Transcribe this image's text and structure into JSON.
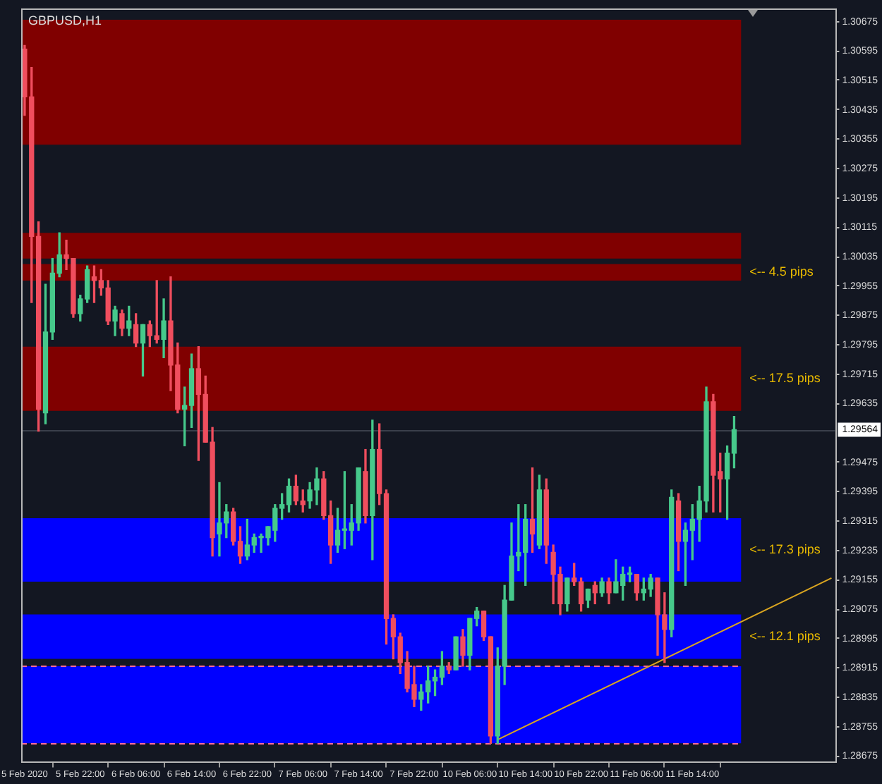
{
  "chart_data": {
    "type": "candlestick",
    "title": "GBPUSD,H1",
    "categories": [
      "5 Feb 2020",
      null,
      null,
      null,
      null,
      null,
      null,
      null,
      "5 Feb 22:00",
      null,
      null,
      null,
      null,
      null,
      null,
      null,
      "6 Feb 06:00",
      null,
      null,
      null,
      null,
      null,
      null,
      null,
      "6 Feb 14:00",
      null,
      null,
      null,
      null,
      null,
      null,
      null,
      "6 Feb 22:00",
      null,
      null,
      null,
      null,
      null,
      null,
      null,
      "7 Feb 06:00",
      null,
      null,
      null,
      null,
      null,
      null,
      null,
      "7 Feb 14:00",
      null,
      null,
      null,
      null,
      null,
      null,
      null,
      "7 Feb 22:00",
      null,
      null,
      null,
      null,
      null,
      null,
      null,
      "10 Feb 06:00",
      null,
      null,
      null,
      null,
      null,
      null,
      null,
      "10 Feb 14:00",
      null,
      null,
      null,
      null,
      null,
      null,
      null,
      "10 Feb 22:00",
      null,
      null,
      null,
      null,
      null,
      null,
      null,
      "11 Feb 06:00",
      null,
      null,
      null,
      null,
      null,
      null,
      null,
      "11 Feb 14:00",
      null,
      null,
      null,
      null,
      null,
      null,
      null,
      null,
      null,
      null,
      null,
      null,
      null,
      null,
      null,
      null,
      null,
      null,
      null,
      null
    ],
    "ohlc": [
      [
        1.306,
        1.3061,
        1.3042,
        1.3047
      ],
      [
        1.3047,
        1.3055,
        1.2991,
        1.3009
      ],
      [
        1.3009,
        1.3013,
        1.2956,
        1.2962
      ],
      [
        1.2961,
        1.2996,
        1.2958,
        1.2983
      ],
      [
        1.2983,
        1.3003,
        1.2981,
        1.2999
      ],
      [
        1.2999,
        1.301,
        1.2998,
        1.3004
      ],
      [
        1.3004,
        1.3008,
        1.3,
        1.3003
      ],
      [
        1.3003,
        1.3003,
        1.2987,
        1.2988
      ],
      [
        1.2988,
        1.2993,
        1.2986,
        1.2992
      ],
      [
        1.2992,
        1.3001,
        1.2991,
        1.3
      ],
      [
        1.2998,
        1.3001,
        1.2991,
        1.2997
      ],
      [
        1.2997,
        1.3,
        1.2993,
        1.2995
      ],
      [
        1.2995,
        1.2997,
        1.2985,
        1.2986
      ],
      [
        1.2986,
        1.299,
        1.2982,
        1.2989
      ],
      [
        1.2988,
        1.2989,
        1.2982,
        1.2984
      ],
      [
        1.2984,
        1.299,
        1.2982,
        1.2986
      ],
      [
        1.2985,
        1.2988,
        1.2979,
        1.298
      ],
      [
        1.298,
        1.2985,
        1.2971,
        1.2985
      ],
      [
        1.2985,
        1.2986,
        1.2979,
        1.2982
      ],
      [
        1.2982,
        1.2997,
        1.298,
        1.2981
      ],
      [
        1.2981,
        1.2992,
        1.2976,
        1.2986
      ],
      [
        1.2986,
        1.2998,
        1.2967,
        1.2974
      ],
      [
        1.2974,
        1.298,
        1.2961,
        1.2962
      ],
      [
        1.2962,
        1.2968,
        1.2952,
        1.2963
      ],
      [
        1.2963,
        1.2977,
        1.2957,
        1.2973
      ],
      [
        1.2973,
        1.2979,
        1.2948,
        1.2966
      ],
      [
        1.2966,
        1.2971,
        1.2953,
        1.2953
      ],
      [
        1.2953,
        1.2957,
        1.2922,
        1.2927
      ],
      [
        1.2928,
        1.2942,
        1.2922,
        1.2931
      ],
      [
        1.2931,
        1.2936,
        1.2927,
        1.2934
      ],
      [
        1.2934,
        1.2935,
        1.2925,
        1.2926
      ],
      [
        1.2926,
        1.293,
        1.292,
        1.2922
      ],
      [
        1.2922,
        1.2932,
        1.2921,
        1.2925
      ],
      [
        1.2925,
        1.2928,
        1.2923,
        1.2927
      ],
      [
        1.2927,
        1.2928,
        1.2923,
        1.2927
      ],
      [
        1.2927,
        1.293,
        1.2925,
        1.293
      ],
      [
        1.2929,
        1.2936,
        1.2926,
        1.2935
      ],
      [
        1.2935,
        1.2939,
        1.2932,
        1.2936
      ],
      [
        1.2936,
        1.2943,
        1.2934,
        1.2941
      ],
      [
        1.2941,
        1.2944,
        1.2936,
        1.2937
      ],
      [
        1.2937,
        1.294,
        1.2934,
        1.2936
      ],
      [
        1.2937,
        1.2942,
        1.2935,
        1.294
      ],
      [
        1.294,
        1.2946,
        1.2936,
        1.2943
      ],
      [
        1.2943,
        1.2945,
        1.2932,
        1.2933
      ],
      [
        1.2933,
        1.2937,
        1.292,
        1.2925
      ],
      [
        1.2925,
        1.2935,
        1.2923,
        1.2929
      ],
      [
        1.2929,
        1.2945,
        1.2924,
        1.2929
      ],
      [
        1.2929,
        1.2936,
        1.2925,
        1.2931
      ],
      [
        1.2931,
        1.2946,
        1.2929,
        1.2946
      ],
      [
        1.2945,
        1.2951,
        1.2931,
        1.2933
      ],
      [
        1.2933,
        1.2959,
        1.2921,
        1.2951
      ],
      [
        1.2951,
        1.2958,
        1.2936,
        1.2939
      ],
      [
        1.2939,
        1.294,
        1.2898,
        1.2905
      ],
      [
        1.2905,
        1.2906,
        1.2894,
        1.29
      ],
      [
        1.29,
        1.2901,
        1.289,
        1.2893
      ],
      [
        1.2893,
        1.2896,
        1.2885,
        1.2886
      ],
      [
        1.2887,
        1.2892,
        1.2881,
        1.2883
      ],
      [
        1.2883,
        1.2887,
        1.288,
        1.2885
      ],
      [
        1.2885,
        1.2892,
        1.2882,
        1.2888
      ],
      [
        1.2888,
        1.2891,
        1.2884,
        1.2889
      ],
      [
        1.2889,
        1.2896,
        1.2887,
        1.2892
      ],
      [
        1.2892,
        1.2893,
        1.289,
        1.2891
      ],
      [
        1.2891,
        1.29,
        1.2891,
        1.29
      ],
      [
        1.29,
        1.2902,
        1.2892,
        1.2895
      ],
      [
        1.2895,
        1.2905,
        1.2891,
        1.2905
      ],
      [
        1.2905,
        1.2908,
        1.2903,
        1.2907
      ],
      [
        1.2907,
        1.2907,
        1.2899,
        1.29
      ],
      [
        1.29,
        1.29,
        1.2871,
        1.2873
      ],
      [
        1.2873,
        1.2897,
        1.2871,
        1.2892
      ],
      [
        1.2892,
        1.2914,
        1.2887,
        1.291
      ],
      [
        1.291,
        1.2931,
        1.291,
        1.2922
      ],
      [
        1.2922,
        1.2936,
        1.2918,
        1.2923
      ],
      [
        1.2923,
        1.2936,
        1.2914,
        1.2932
      ],
      [
        1.2932,
        1.2946,
        1.2923,
        1.2928
      ],
      [
        1.2925,
        1.2944,
        1.2924,
        1.294
      ],
      [
        1.294,
        1.2943,
        1.292,
        1.2925
      ],
      [
        1.2923,
        1.2925,
        1.2909,
        1.2917
      ],
      [
        1.2917,
        1.2919,
        1.2906,
        1.2909
      ],
      [
        1.2909,
        1.2916,
        1.2907,
        1.2916
      ],
      [
        1.2916,
        1.292,
        1.2914,
        1.2915
      ],
      [
        1.2915,
        1.2916,
        1.2907,
        1.2909
      ],
      [
        1.291,
        1.2913,
        1.2908,
        1.2913
      ],
      [
        1.2914,
        1.2915,
        1.2909,
        1.2912
      ],
      [
        1.2912,
        1.2916,
        1.2911,
        1.2915
      ],
      [
        1.2915,
        1.2916,
        1.2909,
        1.2912
      ],
      [
        1.2912,
        1.2921,
        1.2912,
        1.2915
      ],
      [
        1.2914,
        1.2919,
        1.291,
        1.2917
      ],
      [
        1.2917,
        1.2919,
        1.2915,
        1.2917
      ],
      [
        1.2917,
        1.2917,
        1.291,
        1.2912
      ],
      [
        1.2912,
        1.2916,
        1.291,
        1.2913
      ],
      [
        1.2913,
        1.2917,
        1.2911,
        1.2916
      ],
      [
        1.2916,
        1.2916,
        1.2895,
        1.2906
      ],
      [
        1.2906,
        1.2912,
        1.2893,
        1.2902
      ],
      [
        1.2902,
        1.294,
        1.29,
        1.2938
      ],
      [
        1.2937,
        1.2939,
        1.2918,
        1.2926
      ],
      [
        1.2926,
        1.2931,
        1.2914,
        1.2929
      ],
      [
        1.2929,
        1.2936,
        1.2921,
        1.2932
      ],
      [
        1.2932,
        1.2941,
        1.2926,
        1.2937
      ],
      [
        1.2937,
        1.2968,
        1.2934,
        1.2964
      ],
      [
        1.2964,
        1.2966,
        1.2934,
        1.2944
      ],
      [
        1.2945,
        1.295,
        1.2934,
        1.2943
      ],
      [
        1.2943,
        1.2952,
        1.2932,
        1.295
      ],
      [
        1.295,
        1.296,
        1.2946,
        1.29564
      ],
      null,
      null,
      null,
      null,
      null,
      null,
      null,
      null,
      null,
      null,
      null,
      null,
      null,
      null
    ],
    "colors": [
      "#f04e5e",
      "#f04e5e",
      "#f04e5e",
      "#46c98b",
      "#46c98b",
      "#46c98b",
      "#f04e5e",
      "#f04e5e",
      "#46c98b",
      "#46c98b",
      "#f04e5e",
      "#f04e5e",
      "#f04e5e",
      "#46c98b",
      "#f04e5e",
      "#46c98b",
      "#f04e5e",
      "#46c98b",
      "#f04e5e",
      "#f04e5e",
      "#46c98b",
      "#f04e5e",
      "#f04e5e",
      "#46c98b",
      "#46c98b",
      "#f04e5e",
      "#f04e5e",
      "#f04e5e",
      "#46c98b",
      "#46c98b",
      "#f04e5e",
      "#f04e5e",
      "#46c98b",
      "#46c98b",
      "#46c98b",
      "#46c98b",
      "#46c98b",
      "#46c98b",
      "#46c98b",
      "#f04e5e",
      "#f04e5e",
      "#46c98b",
      "#46c98b",
      "#f04e5e",
      "#f04e5e",
      "#46c98b",
      "#46c98b",
      "#46c98b",
      "#46c98b",
      "#f04e5e",
      "#46c98b",
      "#f04e5e",
      "#f04e5e",
      "#f04e5e",
      "#f04e5e",
      "#f04e5e",
      "#f04e5e",
      "#46c98b",
      "#46c98b",
      "#46c98b",
      "#46c98b",
      "#f04e5e",
      "#46c98b",
      "#f04e5e",
      "#46c98b",
      "#46c98b",
      "#f04e5e",
      "#f04e5e",
      "#46c98b",
      "#46c98b",
      "#46c98b",
      "#46c98b",
      "#46c98b",
      "#f04e5e",
      "#46c98b",
      "#f04e5e",
      "#f04e5e",
      "#f04e5e",
      "#46c98b",
      "#f04e5e",
      "#f04e5e",
      "#46c98b",
      "#f04e5e",
      "#46c98b",
      "#f04e5e",
      "#46c98b",
      "#46c98b",
      "#46c98b",
      "#f04e5e",
      "#46c98b",
      "#46c98b",
      "#f04e5e",
      "#f04e5e",
      "#46c98b",
      "#f04e5e",
      "#46c98b",
      "#46c98b",
      "#46c98b",
      "#46c98b",
      "#f04e5e",
      "#f04e5e",
      "#46c98b",
      "#46c98b",
      null,
      null,
      null,
      null,
      null,
      null,
      null,
      null,
      null,
      null,
      null,
      null,
      null,
      null
    ],
    "series": [
      {
        "type": "line",
        "color": "#daa520",
        "values": [
          null,
          null,
          null,
          null,
          null,
          null,
          null,
          null,
          null,
          null,
          null,
          null,
          null,
          null,
          null,
          null,
          null,
          null,
          null,
          null,
          null,
          null,
          null,
          null,
          null,
          null,
          null,
          null,
          null,
          null,
          null,
          null,
          null,
          null,
          null,
          null,
          null,
          null,
          null,
          null,
          null,
          null,
          null,
          null,
          null,
          null,
          null,
          null,
          null,
          null,
          null,
          null,
          null,
          null,
          null,
          null,
          null,
          null,
          null,
          null,
          null,
          null,
          null,
          null,
          null,
          null,
          null,
          null,
          1.2872,
          null,
          null,
          null,
          null,
          null,
          null,
          null,
          null,
          null,
          null,
          null,
          null,
          null,
          null,
          null,
          null,
          null,
          null,
          null,
          null,
          null,
          null,
          null,
          null,
          null,
          null,
          null,
          null,
          null,
          null,
          null,
          null,
          null,
          null,
          null,
          null,
          null,
          null,
          null,
          null,
          null,
          null,
          null,
          null,
          null,
          null,
          null,
          1.2916
        ]
      }
    ],
    "ylim": [
      1.2866,
      1.3071
    ],
    "yticks": [
      1.30675,
      1.30595,
      1.30515,
      1.30435,
      1.30355,
      1.30275,
      1.30195,
      1.30115,
      1.30035,
      1.29955,
      1.29875,
      1.29795,
      1.29715,
      1.29635,
      1.29475,
      1.29395,
      1.29315,
      1.29235,
      1.29155,
      1.29075,
      1.28995,
      1.28915,
      1.28835,
      1.28755,
      1.28675
    ],
    "bands": [
      {
        "axis": "y",
        "from": 1.3034,
        "to": 1.3068,
        "color": "#800000"
      },
      {
        "axis": "y",
        "from": 1.3003,
        "to": 1.301,
        "color": "#800000"
      },
      {
        "axis": "y",
        "from": 1.2997,
        "to": 1.30015,
        "color": "#800000",
        "label": "<-- 4.5 pips"
      },
      {
        "axis": "y",
        "from": 1.29615,
        "to": 1.2979,
        "color": "#800000",
        "label": "<-- 17.5 pips"
      },
      {
        "axis": "y",
        "from": 1.2915,
        "to": 1.29323,
        "color": "#0000ff",
        "label": "<-- 17.3 pips"
      },
      {
        "axis": "y",
        "from": 1.2894,
        "to": 1.29061,
        "color": "#0000ff",
        "label": "<-- 12.1 pips"
      },
      {
        "axis": "y",
        "from": 1.2871,
        "to": 1.2892,
        "color": "#0000ff"
      }
    ],
    "ref_lines": [
      {
        "axis": "y",
        "value": 1.29564,
        "label": "1.29564",
        "color": "#3a3f4b"
      },
      {
        "axis": "y",
        "value": 1.2892,
        "color": "#ff6b9a",
        "line_style": "dashed"
      },
      {
        "axis": "y",
        "value": 1.2871,
        "color": "#ff6b9a",
        "line_style": "dashed"
      }
    ],
    "grid": false,
    "legend": false
  }
}
